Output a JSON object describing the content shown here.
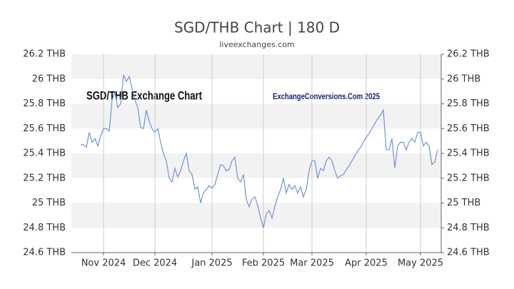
{
  "chart_data": {
    "type": "line",
    "title": "SGD/THB Chart | 180 D",
    "subtitle": "liveexchanges.com",
    "annotations": [
      "SGD/THB Exchange Chart",
      "ExchangeConversions.Com 2025"
    ],
    "categories": [
      null,
      null,
      null,
      null,
      null,
      null,
      null,
      null,
      "Nov 2024",
      null,
      null,
      null,
      null,
      null,
      null,
      null,
      null,
      null,
      null,
      null,
      null,
      null,
      null,
      null,
      null,
      null,
      "Dec 2024",
      null,
      null,
      null,
      null,
      null,
      null,
      null,
      null,
      null,
      null,
      null,
      null,
      null,
      null,
      null,
      null,
      null,
      null,
      null,
      "Jan 2025",
      null,
      null,
      null,
      null,
      null,
      null,
      null,
      null,
      null,
      null,
      null,
      null,
      null,
      null,
      null,
      null,
      null,
      "Feb 2025",
      null,
      null,
      null,
      null,
      null,
      null,
      null,
      null,
      null,
      null,
      null,
      null,
      null,
      null,
      null,
      null,
      "Mar 2025",
      null,
      null,
      null,
      null,
      null,
      null,
      null,
      null,
      null,
      null,
      null,
      null,
      null,
      null,
      null,
      null,
      null,
      null,
      "Apr 2025",
      null,
      null,
      null,
      null,
      null,
      null,
      null,
      null,
      null,
      null,
      null,
      null,
      null,
      null,
      null,
      null,
      null,
      null,
      "May 2025",
      null,
      null,
      null,
      null,
      null,
      null
    ],
    "series": [
      {
        "name": "SGD/THB",
        "color": "#6f93d6",
        "values": [
          25.47,
          25.47,
          25.45,
          25.57,
          25.49,
          25.52,
          25.46,
          25.54,
          25.6,
          25.6,
          25.58,
          25.83,
          25.89,
          25.77,
          25.8,
          26.03,
          25.98,
          26.02,
          25.92,
          25.83,
          25.77,
          25.61,
          25.6,
          25.75,
          25.66,
          25.6,
          25.57,
          25.6,
          25.49,
          25.4,
          25.34,
          25.2,
          25.17,
          25.28,
          25.21,
          25.26,
          25.34,
          25.4,
          25.26,
          25.23,
          25.11,
          25.13,
          25.0,
          25.08,
          25.11,
          25.14,
          25.12,
          25.15,
          25.23,
          25.31,
          25.3,
          25.26,
          25.27,
          25.34,
          25.37,
          25.2,
          25.17,
          25.23,
          25.03,
          24.97,
          25.03,
          25.05,
          24.98,
          24.88,
          24.8,
          24.91,
          24.94,
          24.88,
          24.97,
          25.05,
          25.11,
          25.2,
          25.08,
          25.15,
          25.11,
          25.14,
          25.08,
          25.13,
          25.05,
          25.11,
          25.26,
          25.34,
          25.34,
          25.2,
          25.28,
          25.26,
          25.34,
          25.37,
          25.34,
          25.26,
          25.2,
          25.22,
          25.23,
          25.27,
          25.3,
          25.34,
          25.38,
          25.42,
          25.45,
          25.49,
          25.53,
          25.56,
          25.6,
          25.64,
          25.68,
          25.71,
          25.75,
          25.43,
          25.43,
          25.52,
          25.28,
          25.46,
          25.49,
          25.49,
          25.43,
          25.49,
          25.52,
          25.49,
          25.57,
          25.57,
          25.46,
          25.49,
          25.46,
          25.31,
          25.33,
          25.43
        ]
      }
    ],
    "ylim": [
      24.6,
      26.2
    ],
    "yticks": [
      {
        "value": 24.6,
        "label": "24.6 THB"
      },
      {
        "value": 24.8,
        "label": "24.8 THB"
      },
      {
        "value": 25,
        "label": "25 THB"
      },
      {
        "value": 25.2,
        "label": "25.2 THB"
      },
      {
        "value": 25.4,
        "label": "25.4 THB"
      },
      {
        "value": 25.6,
        "label": "25.6 THB"
      },
      {
        "value": 25.8,
        "label": "25.8 THB"
      },
      {
        "value": 26,
        "label": "26 THB"
      },
      {
        "value": 26.2,
        "label": "26.2 THB"
      }
    ],
    "grid": true
  }
}
